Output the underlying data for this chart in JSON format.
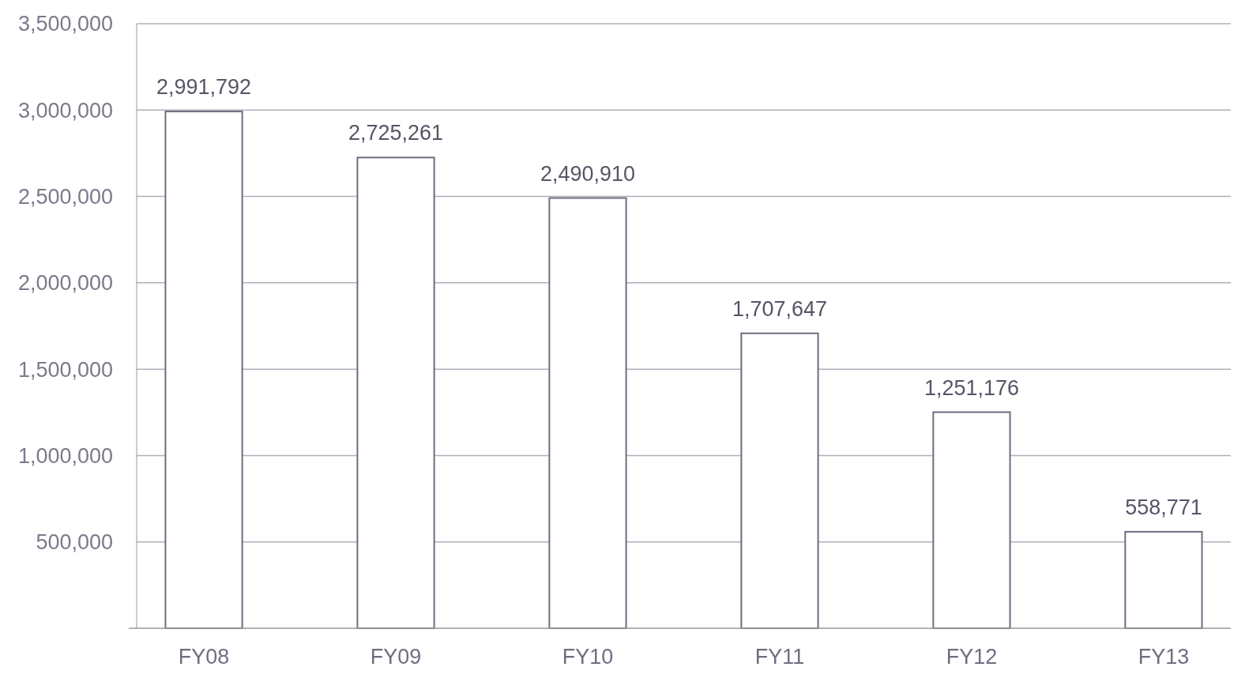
{
  "chart_data": {
    "type": "bar",
    "categories": [
      "FY08",
      "FY09",
      "FY10",
      "FY11",
      "FY12",
      "FY13"
    ],
    "values": [
      2991792,
      2725261,
      2490910,
      1707647,
      1251176,
      558771
    ],
    "color": "#6e6e80",
    "ylim": [
      0,
      3500000
    ],
    "yticks": [
      {
        "value": 500000,
        "label": "500,000"
      },
      {
        "value": 1000000,
        "label": "1,000,000"
      },
      {
        "value": 1500000,
        "label": "1,500,000"
      },
      {
        "value": 2000000,
        "label": "2,000,000"
      },
      {
        "value": 2500000,
        "label": "2,500,000"
      },
      {
        "value": 3000000,
        "label": "3,000,000"
      },
      {
        "value": 3500000,
        "label": "3,500,000"
      }
    ],
    "value_labels": [
      "2,991,792",
      "2,725,261",
      "2,490,910",
      "1,707,647",
      "1,251,176",
      "558,771"
    ],
    "grid": "y"
  }
}
